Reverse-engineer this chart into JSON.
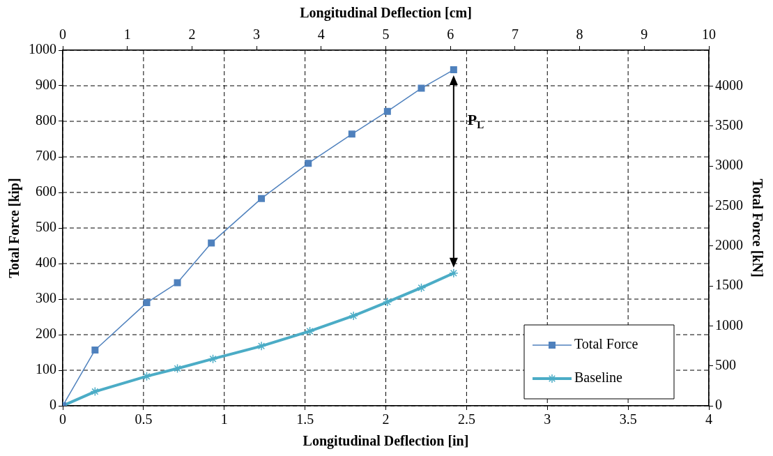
{
  "chart_data": {
    "type": "line",
    "xlabel": "Longitudinal Deflection [in]",
    "x2label": "Longitudinal Deflection [cm]",
    "ylabel": "Total Force [kip]",
    "y2label": "Total Force [kN]",
    "xlim": [
      0,
      4
    ],
    "xticks": [
      0,
      0.5,
      1,
      1.5,
      2,
      2.5,
      3,
      3.5,
      4
    ],
    "x2lim": [
      0,
      10
    ],
    "x2ticks": [
      0,
      1,
      2,
      3,
      4,
      5,
      6,
      7,
      8,
      9,
      10
    ],
    "ylim": [
      0,
      1000
    ],
    "yticks": [
      0,
      100,
      200,
      300,
      400,
      500,
      600,
      700,
      800,
      900,
      1000
    ],
    "y2lim": [
      0,
      4448
    ],
    "y2ticks": [
      0,
      500,
      1000,
      1500,
      2000,
      2500,
      3000,
      3500,
      4000
    ],
    "grid": true,
    "legend": "bottom right",
    "line_style": "solid",
    "annotations": [
      "P$_{L}$"
    ],
    "series": [
      {
        "name": "Total Force",
        "color": "#4f81bd",
        "marker": "square",
        "x": [
          0,
          0.2,
          0.52,
          0.71,
          0.92,
          1.23,
          1.52,
          1.79,
          2.01,
          2.22,
          2.42
        ],
        "values": [
          0,
          157,
          290,
          346,
          458,
          583,
          682,
          764,
          828,
          893,
          945
        ]
      },
      {
        "name": "Baseline",
        "color": "#4bacc6",
        "marker": "cross",
        "x": [
          0,
          0.2,
          0.52,
          0.71,
          0.93,
          1.23,
          1.53,
          1.8,
          2.01,
          2.22,
          2.42
        ],
        "values": [
          0,
          40,
          83,
          105,
          132,
          168,
          210,
          253,
          292,
          332,
          373
        ]
      }
    ]
  }
}
